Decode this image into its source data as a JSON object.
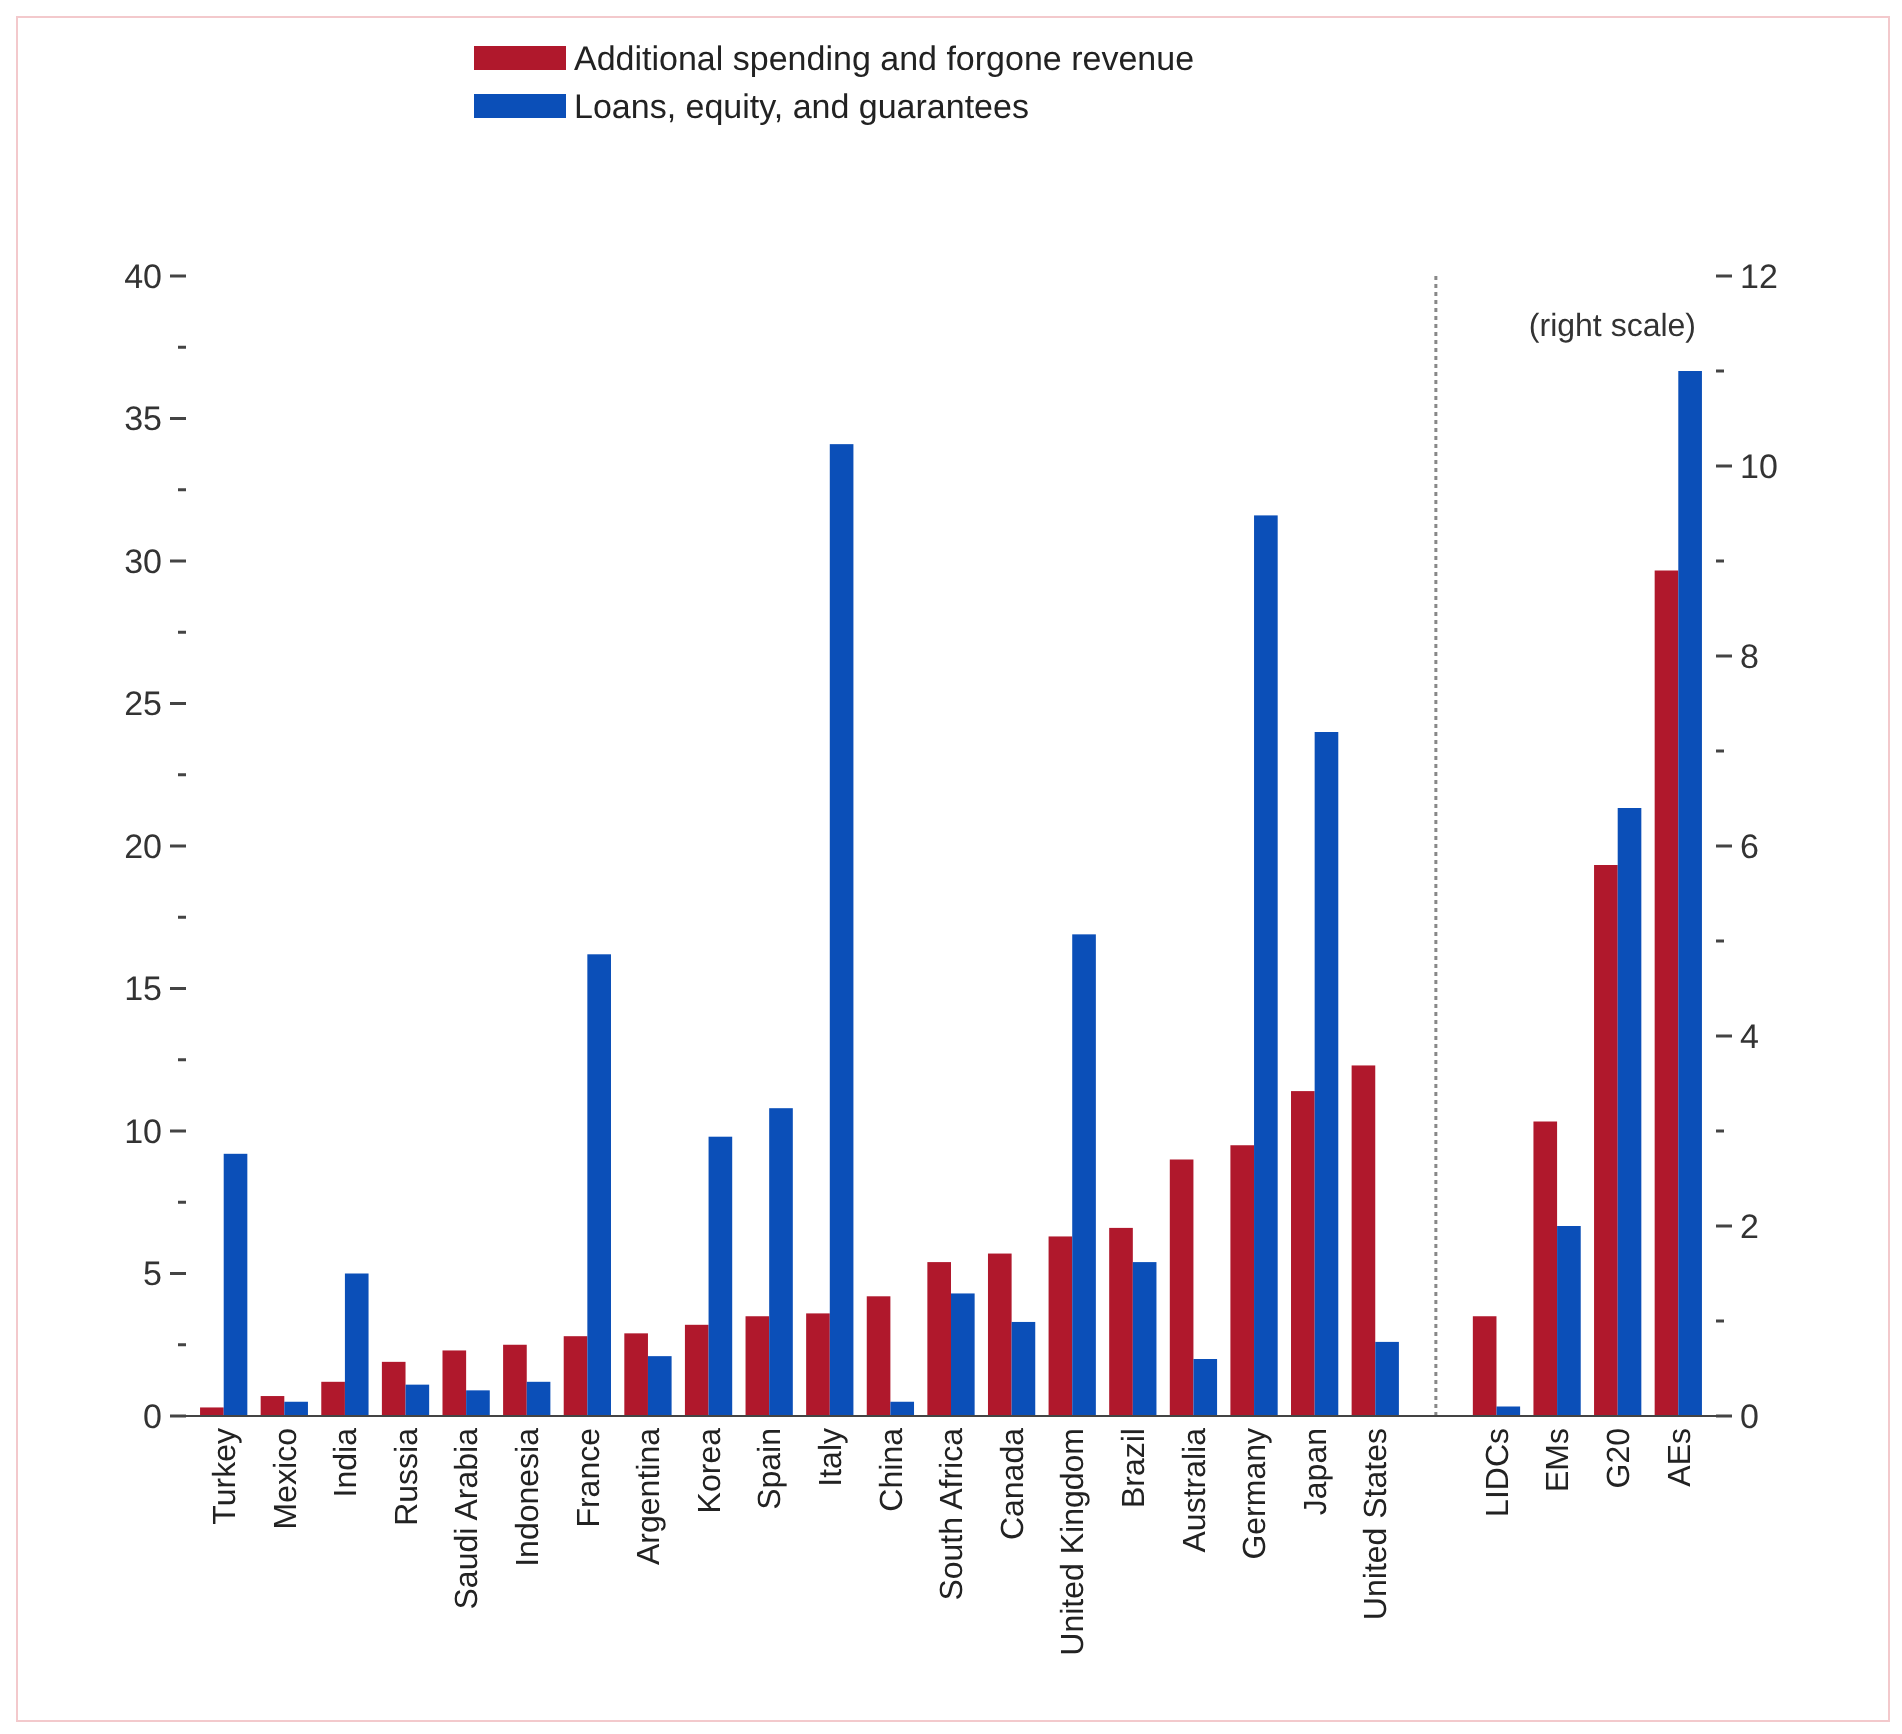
{
  "chart_data": {
    "type": "bar",
    "categories": [
      "Turkey",
      "Mexico",
      "India",
      "Russia",
      "Saudi Arabia",
      "Indonesia",
      "France",
      "Argentina",
      "Korea",
      "Spain",
      "Italy",
      "China",
      "South Africa",
      "Canada",
      "United Kingdom",
      "Brazil",
      "Australia",
      "Germany",
      "Japan",
      "United States",
      null,
      "LIDCs",
      "EMs",
      "G20",
      "AEs"
    ],
    "series": [
      {
        "name": "Additional spending and forgone revenue",
        "color": "#b0182c",
        "values": [
          0.3,
          0.7,
          1.2,
          1.9,
          2.3,
          2.5,
          2.8,
          2.9,
          3.2,
          3.5,
          3.6,
          4.2,
          5.4,
          5.7,
          6.3,
          6.6,
          9.0,
          9.5,
          11.4,
          12.3,
          null,
          null,
          null,
          null,
          null
        ]
      },
      {
        "name": "Loans, equity, and guarantees",
        "color": "#0b4fb8",
        "values": [
          9.2,
          0.5,
          5.0,
          1.1,
          0.9,
          1.2,
          16.2,
          2.1,
          9.8,
          10.8,
          34.1,
          0.5,
          4.3,
          3.3,
          16.9,
          5.4,
          2.0,
          31.6,
          24.0,
          2.6,
          null,
          null,
          null,
          null,
          null
        ]
      },
      {
        "color": "#b0182c",
        "axis": "y2",
        "values": [
          null,
          null,
          null,
          null,
          null,
          null,
          null,
          null,
          null,
          null,
          null,
          null,
          null,
          null,
          null,
          null,
          null,
          null,
          null,
          null,
          null,
          1.05,
          3.1,
          5.8,
          8.9
        ]
      },
      {
        "color": "#0b4fb8",
        "axis": "y2",
        "values": [
          null,
          null,
          null,
          null,
          null,
          null,
          null,
          null,
          null,
          null,
          null,
          null,
          null,
          null,
          null,
          null,
          null,
          null,
          null,
          null,
          null,
          0.1,
          2.0,
          6.4,
          11.0
        ]
      }
    ],
    "ylim": [
      0,
      40
    ],
    "yticks": [
      0,
      {
        "value": 2.5,
        "label": null
      },
      5,
      {
        "value": 7.5,
        "label": null
      },
      10,
      {
        "value": 12.5,
        "label": null
      },
      15,
      {
        "value": 17.5,
        "label": null
      },
      20,
      {
        "value": 22.5,
        "label": null
      },
      25,
      {
        "value": 27.5,
        "label": null
      },
      30,
      {
        "value": 32.5,
        "label": null
      },
      35,
      {
        "value": 37.5,
        "label": null
      },
      40
    ],
    "y2lim": [
      0,
      12
    ],
    "y2ticks": [
      0,
      {
        "value": 1,
        "label": null
      },
      2,
      {
        "value": 3,
        "label": null
      },
      4,
      {
        "value": 5,
        "label": null
      },
      6,
      {
        "value": 7,
        "label": null
      },
      8,
      {
        "value": 9,
        "label": null
      },
      10,
      {
        "value": 11,
        "label": null
      },
      12
    ],
    "annotations": [
      "(right scale)"
    ],
    "ref_lines": [
      {
        "axis": "x",
        "value": null,
        "line_style": "dotted",
        "color": "#888888"
      }
    ],
    "legend": "top"
  }
}
